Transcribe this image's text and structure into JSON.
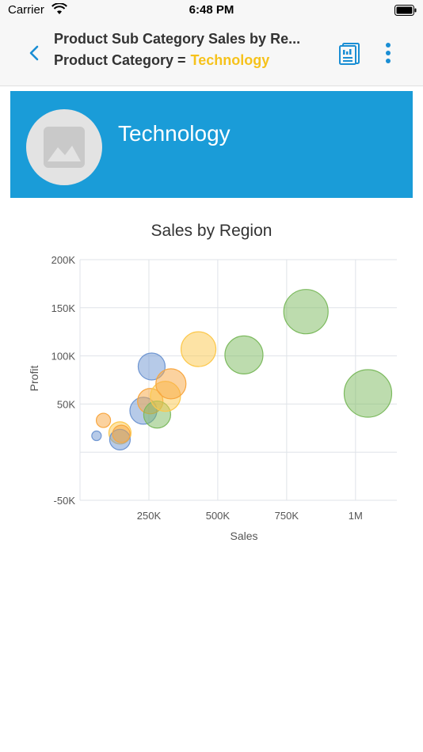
{
  "status": {
    "carrier": "Carrier",
    "time": "6:48 PM"
  },
  "header": {
    "title": "Product Sub Category Sales by Re...",
    "filter_label": "Product Category =",
    "filter_value": "Technology"
  },
  "banner": {
    "title": "Technology"
  },
  "colors": {
    "blue": "#6e95d1",
    "orange": "#f8a63f",
    "yellow": "#fcc84c",
    "green": "#7cba5e",
    "accent": "#1a9cd8"
  },
  "chart_data": {
    "type": "scatter",
    "title": "Sales by Region",
    "xlabel": "Sales",
    "ylabel": "Profit",
    "xlim": [
      0,
      1150000
    ],
    "ylim": [
      -50000,
      200000
    ],
    "x_ticks": [
      250000,
      500000,
      750000,
      1000000
    ],
    "x_tick_labels": [
      "250K",
      "500K",
      "750K",
      "1M"
    ],
    "y_ticks": [
      -50000,
      0,
      50000,
      100000,
      150000,
      200000
    ],
    "y_tick_labels": [
      "-50K",
      "",
      "50K",
      "100K",
      "150K",
      "200K"
    ],
    "grid": true,
    "points": [
      {
        "x": 60000,
        "y": 17000,
        "size": 12,
        "color": "blue"
      },
      {
        "x": 85000,
        "y": 33000,
        "size": 18,
        "color": "orange"
      },
      {
        "x": 145000,
        "y": 20000,
        "size": 28,
        "color": "yellow"
      },
      {
        "x": 145000,
        "y": 13000,
        "size": 26,
        "color": "blue"
      },
      {
        "x": 150000,
        "y": 19000,
        "size": 22,
        "color": "orange"
      },
      {
        "x": 230000,
        "y": 43000,
        "size": 34,
        "color": "blue"
      },
      {
        "x": 260000,
        "y": 89000,
        "size": 34,
        "color": "blue"
      },
      {
        "x": 255000,
        "y": 53000,
        "size": 32,
        "color": "orange"
      },
      {
        "x": 280000,
        "y": 39000,
        "size": 34,
        "color": "green"
      },
      {
        "x": 310000,
        "y": 58000,
        "size": 38,
        "color": "yellow"
      },
      {
        "x": 330000,
        "y": 71000,
        "size": 38,
        "color": "orange"
      },
      {
        "x": 430000,
        "y": 107000,
        "size": 44,
        "color": "yellow"
      },
      {
        "x": 595000,
        "y": 101000,
        "size": 48,
        "color": "green"
      },
      {
        "x": 820000,
        "y": 146000,
        "size": 56,
        "color": "green"
      },
      {
        "x": 1045000,
        "y": 61000,
        "size": 60,
        "color": "green"
      }
    ]
  }
}
